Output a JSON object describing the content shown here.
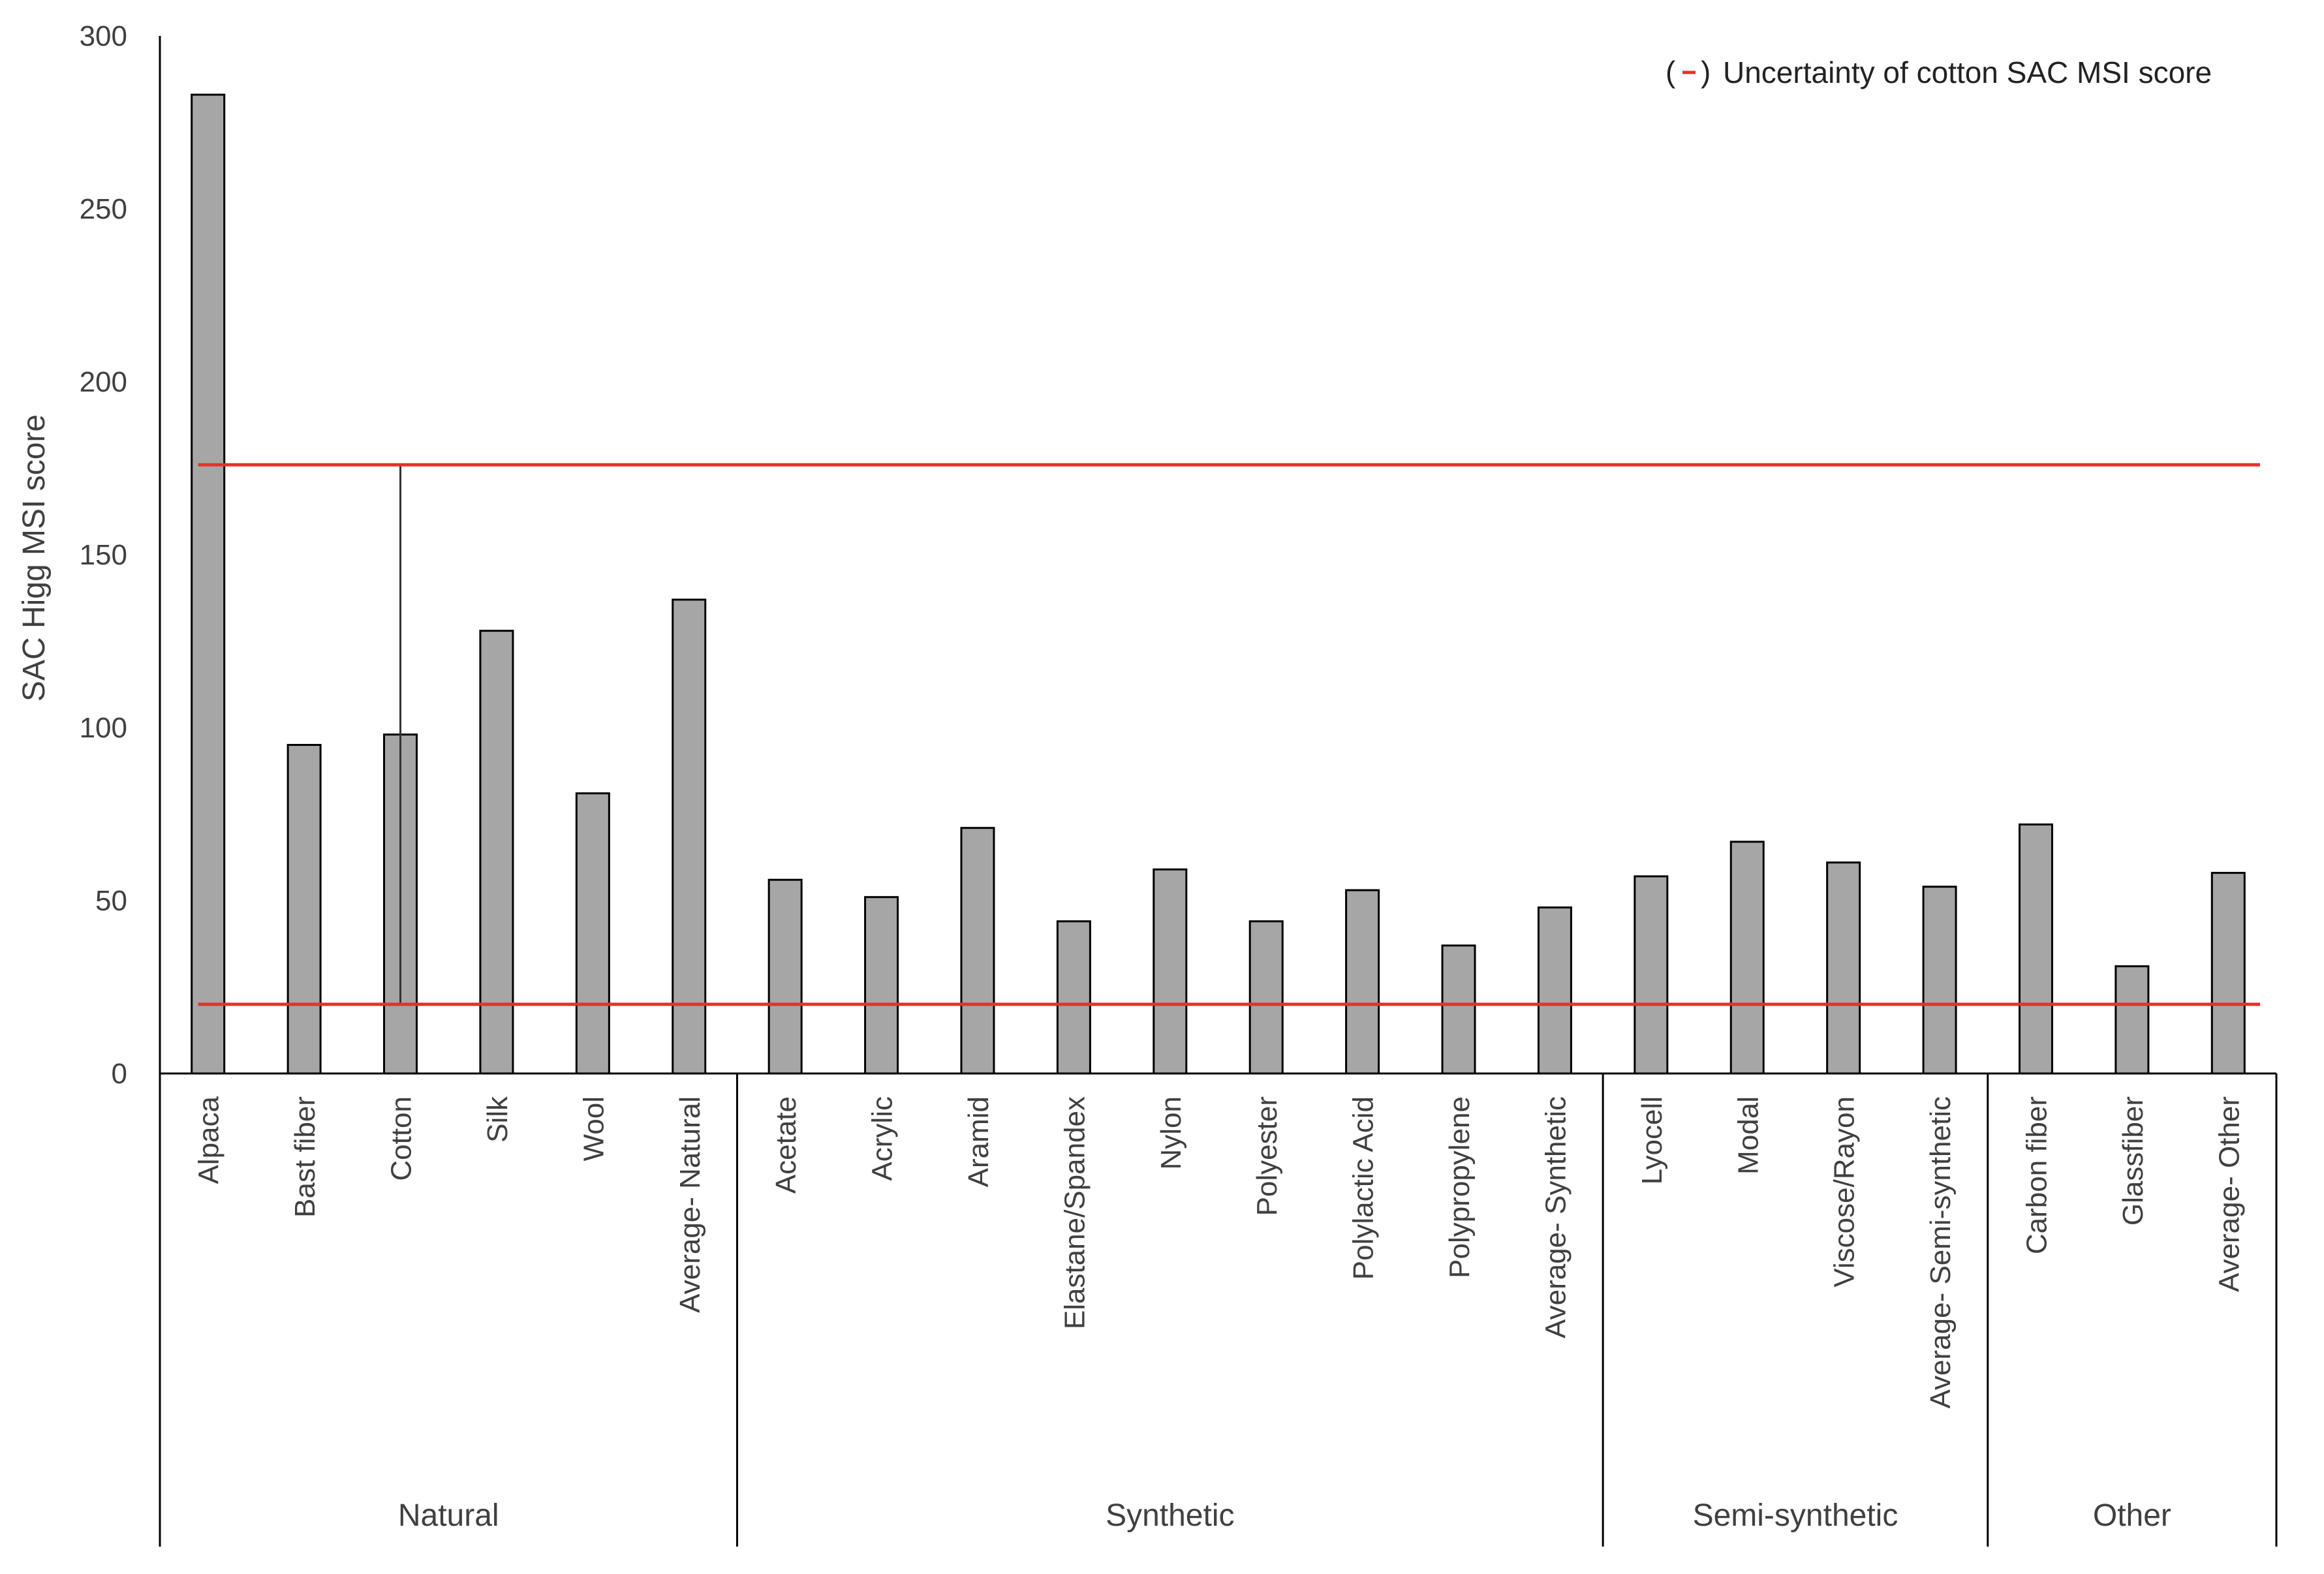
{
  "chart_data": {
    "type": "bar",
    "title": "",
    "xlabel": "",
    "ylabel": "SAC Higg MSI score",
    "ylim": [
      0,
      300
    ],
    "yticks": [
      0,
      50,
      100,
      150,
      200,
      250,
      300
    ],
    "grid": false,
    "categories": [
      "Alpaca",
      "Bast fiber",
      "Cotton",
      "Silk",
      "Wool",
      "Average- Natural",
      "Acetate",
      "Acrylic",
      "Aramid",
      "Elastane/Spandex",
      "Nylon",
      "Polyester",
      "Polylactic Acid",
      "Polypropylene",
      "Average- Synthetic",
      "Lyocell",
      "Modal",
      "Viscose/Rayon",
      "Average- Semi-synthetic",
      "Carbon fiber",
      "Glassfiber",
      "Average- Other"
    ],
    "values": [
      283,
      95,
      98,
      128,
      81,
      137,
      56,
      51,
      71,
      44,
      59,
      44,
      53,
      37,
      48,
      57,
      67,
      61,
      54,
      72,
      31,
      58
    ],
    "bar_color": "#a6a6a6",
    "groups": [
      {
        "label": "Natural",
        "count": 6
      },
      {
        "label": "Synthetic",
        "count": 9
      },
      {
        "label": "Semi-synthetic",
        "count": 4
      },
      {
        "label": "Other",
        "count": 3
      }
    ],
    "uncertainty": {
      "category": "Cotton",
      "upper": 176,
      "lower": 20,
      "color": "#e8302c"
    },
    "legend": {
      "label": "Uncertainty of cotton SAC MSI score",
      "position": "top-right",
      "color": "#e8302c"
    }
  }
}
